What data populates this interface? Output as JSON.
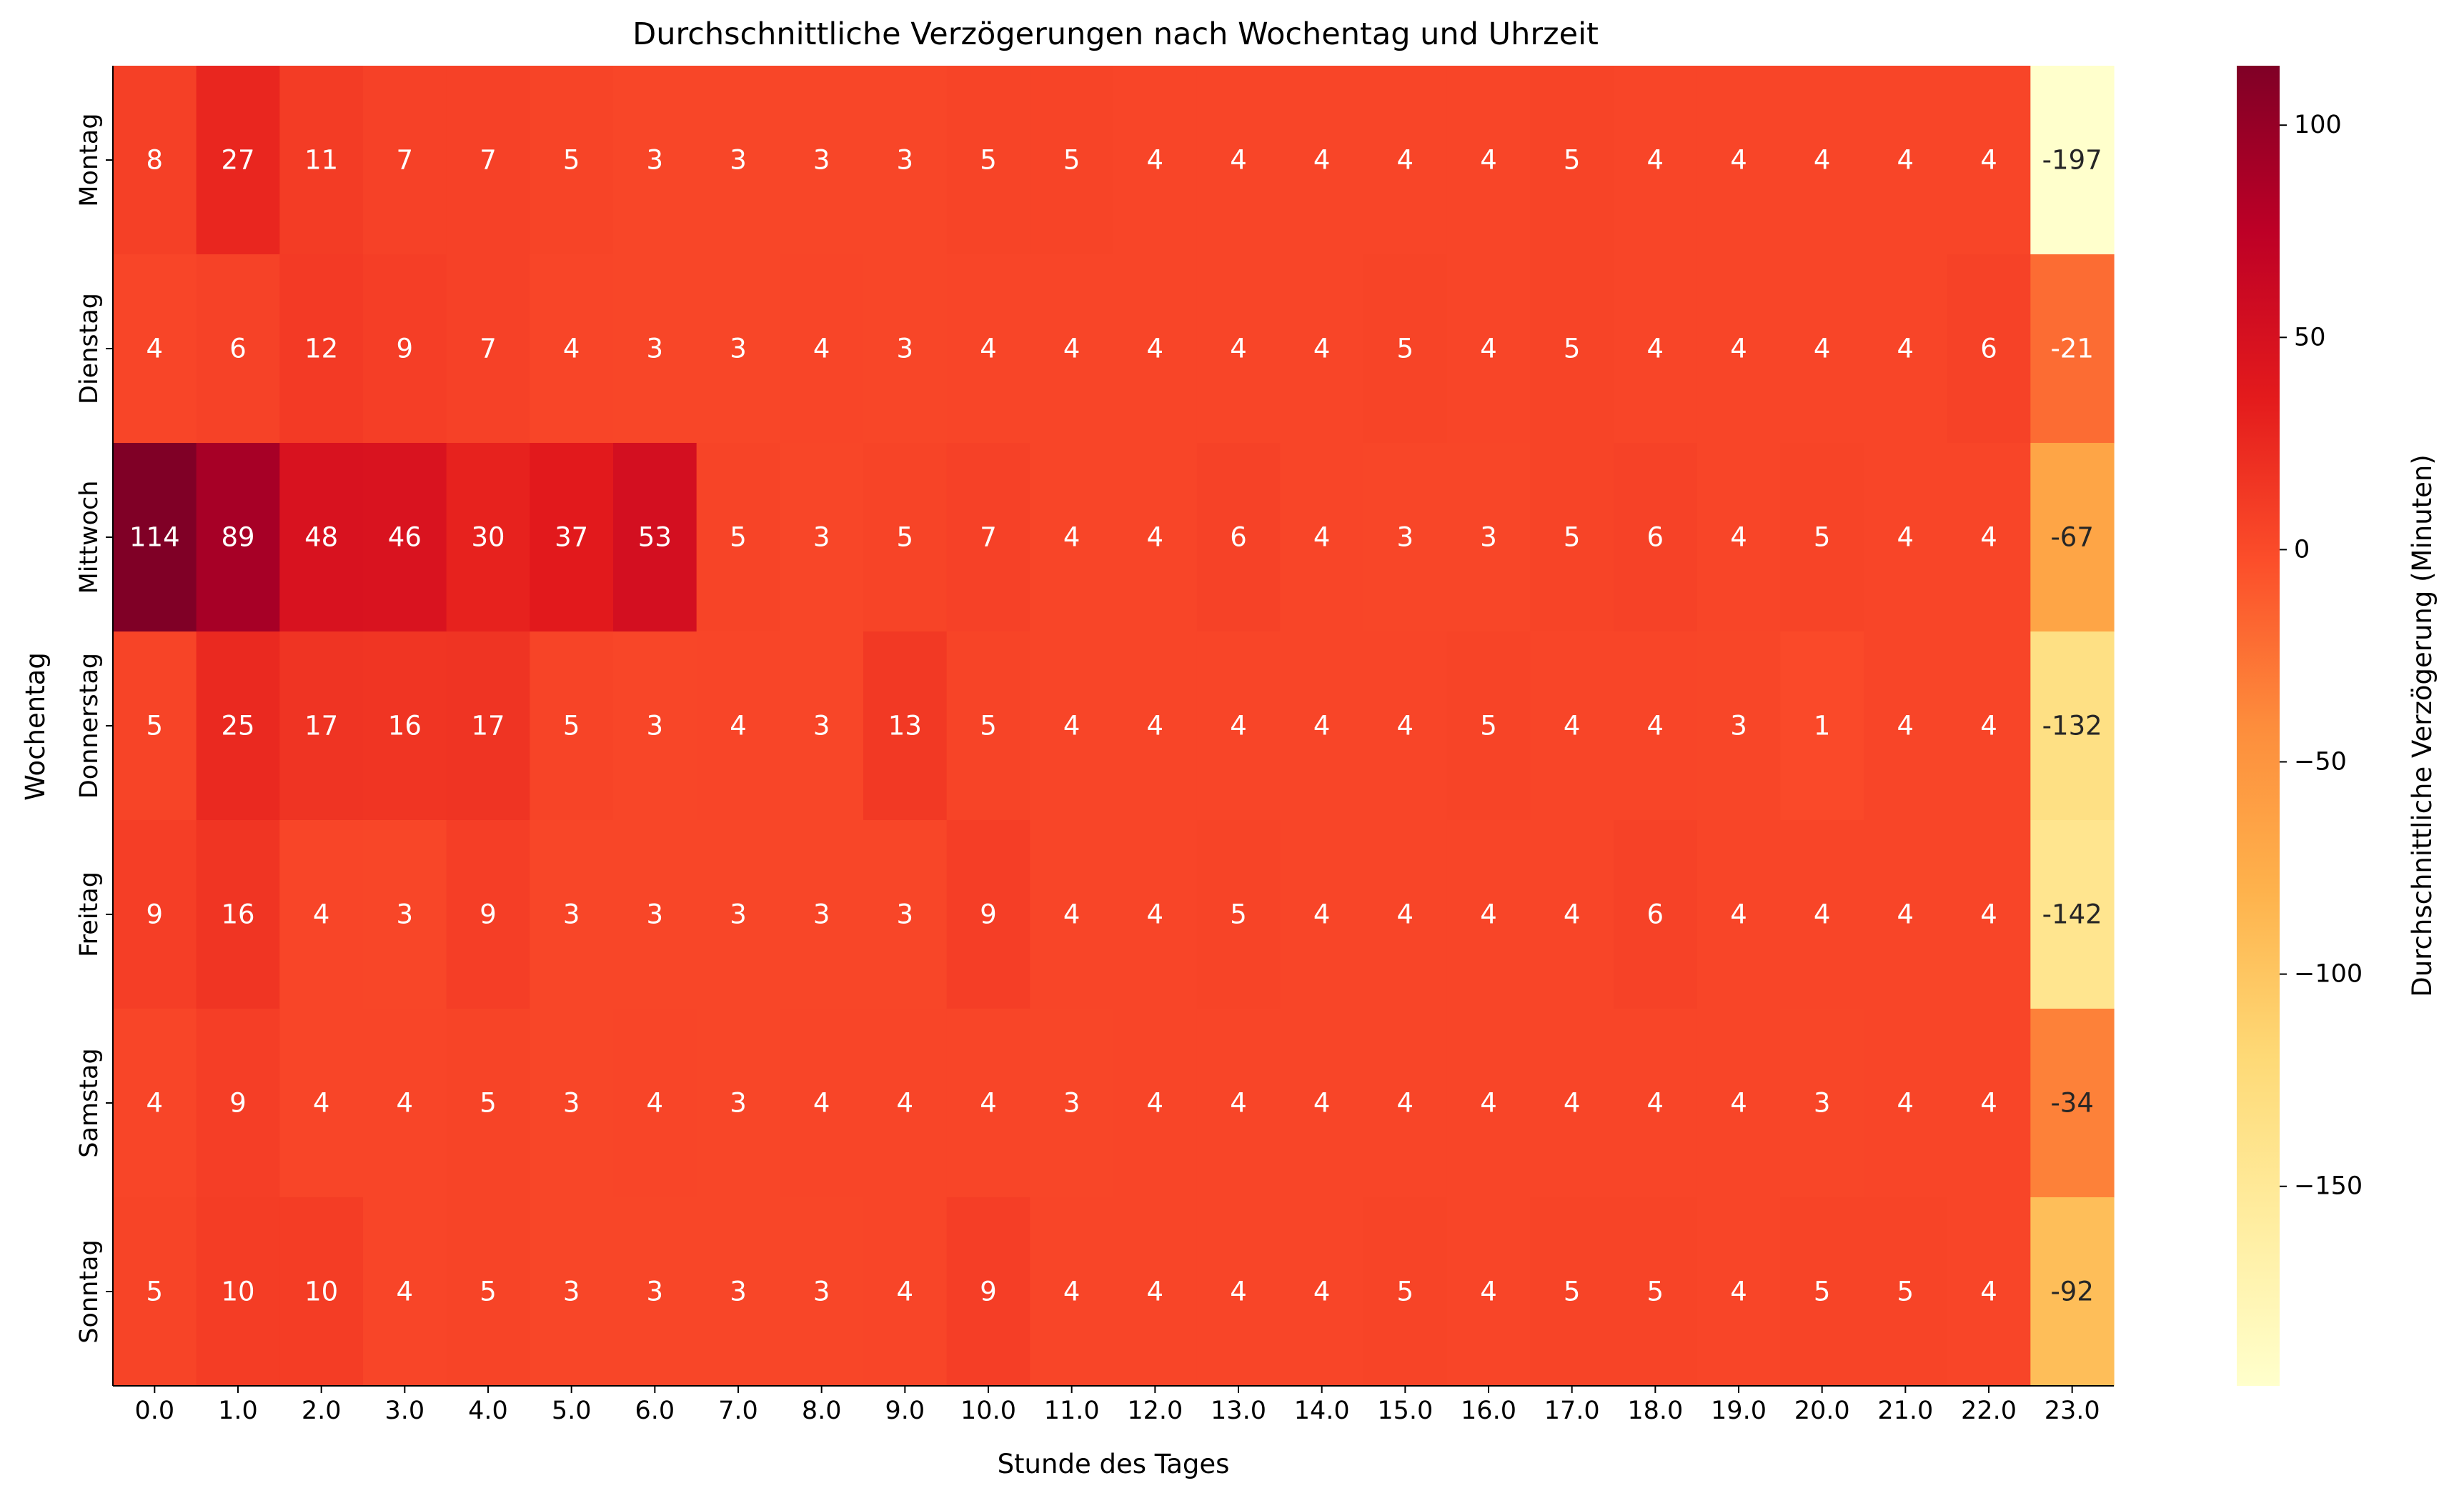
{
  "chart_data": {
    "type": "heatmap",
    "title": "Durchschnittliche Verzögerungen nach Wochentag und Uhrzeit",
    "xlabel": "Stunde des Tages",
    "ylabel": "Wochentag",
    "colorbar_label": "Durchschnittliche Verzögerung (Minuten)",
    "colormap": "YlOrRd",
    "vmin": -197,
    "vmax": 114,
    "colorbar_ticks": [
      100,
      50,
      0,
      -50,
      -100,
      -150
    ],
    "colorbar_tick_labels": [
      "100",
      "50",
      "0",
      "−50",
      "−100",
      "−150"
    ],
    "x": [
      "0.0",
      "1.0",
      "2.0",
      "3.0",
      "4.0",
      "5.0",
      "6.0",
      "7.0",
      "8.0",
      "9.0",
      "10.0",
      "11.0",
      "12.0",
      "13.0",
      "14.0",
      "15.0",
      "16.0",
      "17.0",
      "18.0",
      "19.0",
      "20.0",
      "21.0",
      "22.0",
      "23.0"
    ],
    "y": [
      "Montag",
      "Dienstag",
      "Mittwoch",
      "Donnerstag",
      "Freitag",
      "Samstag",
      "Sonntag"
    ],
    "values": [
      [
        8,
        27,
        11,
        7,
        7,
        5,
        3,
        3,
        3,
        3,
        5,
        5,
        4,
        4,
        4,
        4,
        4,
        5,
        4,
        4,
        4,
        4,
        4,
        -197
      ],
      [
        4,
        6,
        12,
        9,
        7,
        4,
        3,
        3,
        4,
        3,
        4,
        4,
        4,
        4,
        4,
        5,
        4,
        5,
        4,
        4,
        4,
        4,
        6,
        -21
      ],
      [
        114,
        89,
        48,
        46,
        30,
        37,
        53,
        5,
        3,
        5,
        7,
        4,
        4,
        6,
        4,
        3,
        3,
        5,
        6,
        4,
        5,
        4,
        4,
        -67
      ],
      [
        5,
        25,
        17,
        16,
        17,
        5,
        3,
        4,
        3,
        13,
        5,
        4,
        4,
        4,
        4,
        4,
        5,
        4,
        4,
        3,
        1,
        4,
        4,
        -132
      ],
      [
        9,
        16,
        4,
        3,
        9,
        3,
        3,
        3,
        3,
        3,
        9,
        4,
        4,
        5,
        4,
        4,
        4,
        4,
        6,
        4,
        4,
        4,
        4,
        -142
      ],
      [
        4,
        9,
        4,
        4,
        5,
        3,
        4,
        3,
        4,
        4,
        4,
        3,
        4,
        4,
        4,
        4,
        4,
        4,
        4,
        4,
        3,
        4,
        4,
        -34
      ],
      [
        5,
        10,
        10,
        4,
        5,
        3,
        3,
        3,
        3,
        4,
        9,
        4,
        4,
        4,
        4,
        5,
        4,
        5,
        5,
        4,
        5,
        5,
        4,
        -92
      ]
    ]
  }
}
